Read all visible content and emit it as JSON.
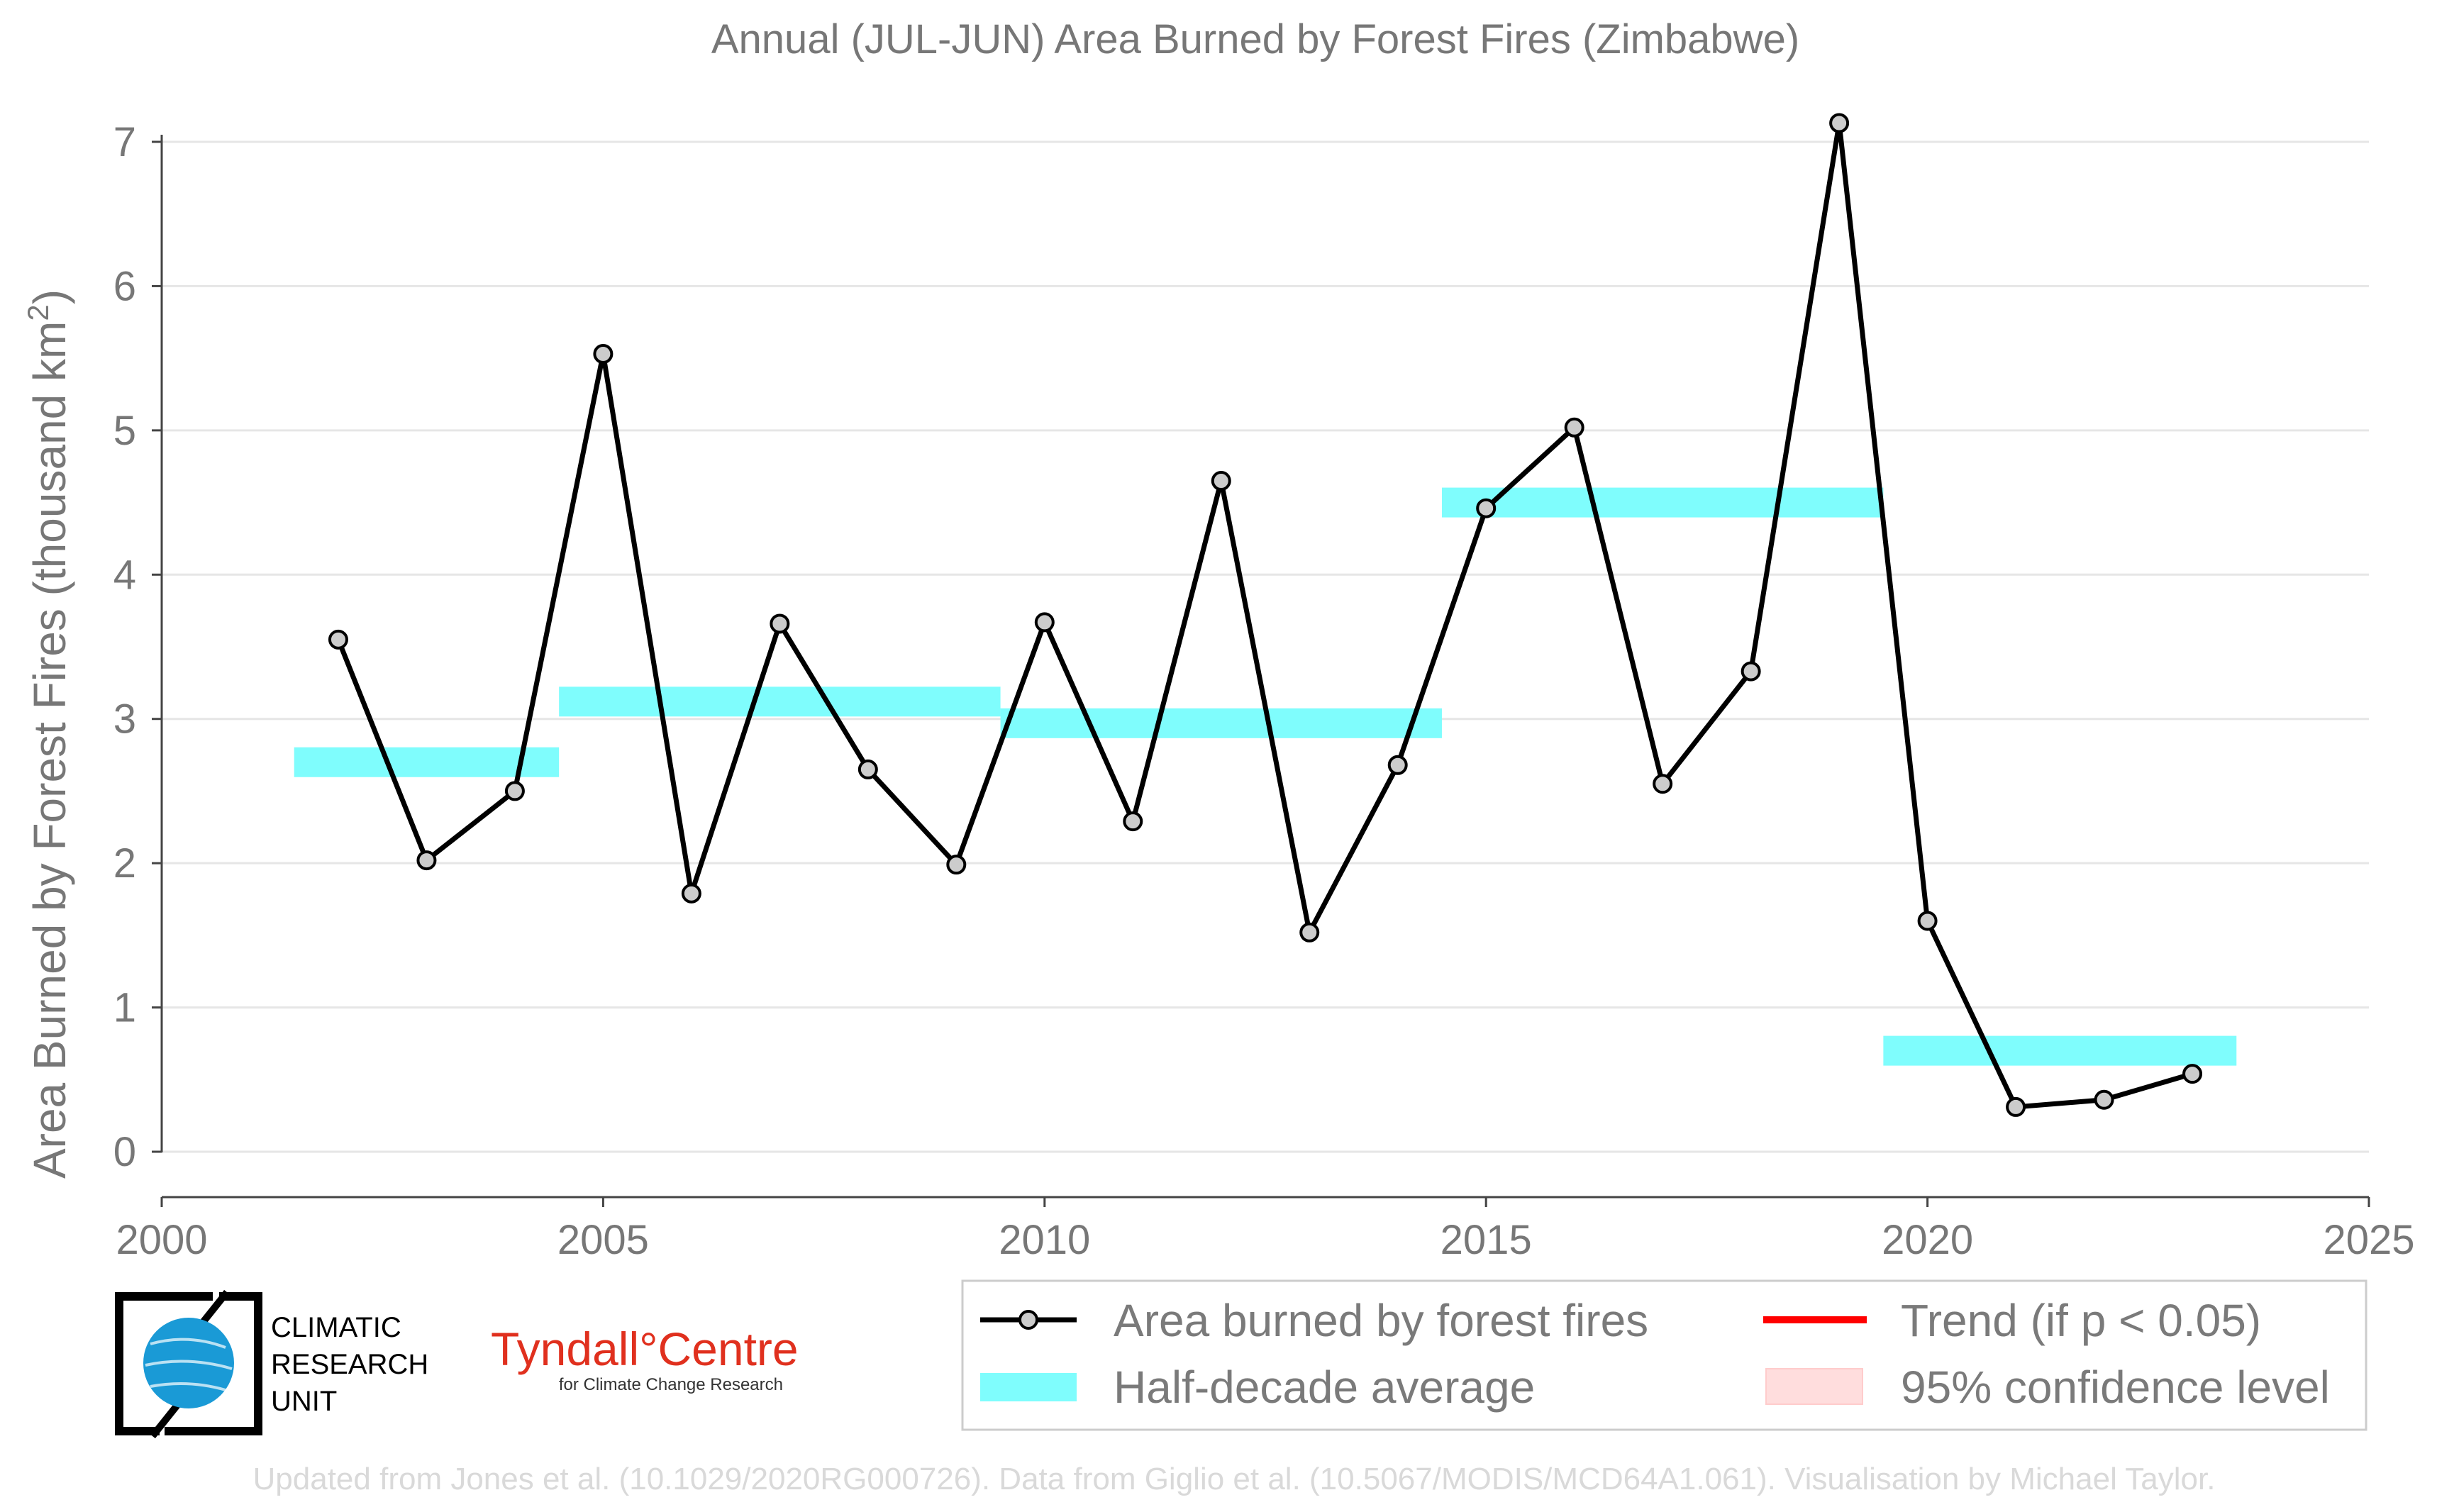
{
  "chart_data": {
    "type": "line",
    "title": "Annual (JUL-JUN) Area Burned by Forest Fires (Zimbabwe)",
    "xlabel": "",
    "ylabel": "Area Burned by Forest Fires (thousand km",
    "ylabel_sup": "2",
    "ylabel_close": ")",
    "xlim": [
      2000,
      2025
    ],
    "ylim": [
      0,
      7
    ],
    "x_ticks": [
      "2000",
      "2005",
      "2010",
      "2015",
      "2020",
      "2025"
    ],
    "y_ticks": [
      "0",
      "1",
      "2",
      "3",
      "4",
      "5",
      "6",
      "7"
    ],
    "series": [
      {
        "name": "Area burned by forest fires",
        "color": "#000000",
        "marker_fill": "#cccccc",
        "x": [
          2002,
          2003,
          2004,
          2005,
          2006,
          2007,
          2008,
          2009,
          2010,
          2011,
          2012,
          2013,
          2014,
          2015,
          2016,
          2017,
          2018,
          2019,
          2020,
          2021,
          2022,
          2023
        ],
        "values": [
          3.55,
          2.02,
          2.5,
          5.53,
          1.79,
          3.66,
          2.65,
          1.99,
          3.67,
          2.29,
          4.65,
          1.52,
          2.68,
          4.46,
          5.02,
          2.55,
          3.33,
          7.13,
          1.6,
          0.31,
          0.36,
          0.54
        ]
      }
    ],
    "half_decade_average": {
      "name": "Half-decade average",
      "color": "#7ffdfd",
      "segments": [
        {
          "start": 2001.5,
          "end": 2004.5,
          "value": 2.7
        },
        {
          "start": 2004.5,
          "end": 2009.5,
          "value": 3.12
        },
        {
          "start": 2009.5,
          "end": 2014.5,
          "value": 2.97
        },
        {
          "start": 2014.5,
          "end": 2019.5,
          "value": 4.5
        },
        {
          "start": 2019.5,
          "end": 2023.5,
          "value": 0.7
        }
      ]
    },
    "legend": {
      "placement": "bottom-right",
      "items": [
        {
          "label": "Area burned by forest fires",
          "kind": "line-marker",
          "color": "#000000"
        },
        {
          "label": "Trend (if p < 0.05)",
          "kind": "line",
          "color": "#ff0000"
        },
        {
          "label": "Half-decade average",
          "kind": "band",
          "color": "#7ffdfd"
        },
        {
          "label": "95% confidence level",
          "kind": "band",
          "color": "#ffdddd"
        }
      ]
    },
    "grid": true
  },
  "logos": {
    "cru_line1": "CLIMATIC",
    "cru_line2": "RESEARCH",
    "cru_line3": "UNIT",
    "tyndall_main": "Tyndall°Centre",
    "tyndall_sub": "for Climate Change Research"
  },
  "footer": "Updated from Jones et al. (10.1029/2020RG000726). Data from Giglio et al. (10.5067/MODIS/MCD64A1.061). Visualisation by Michael Taylor."
}
